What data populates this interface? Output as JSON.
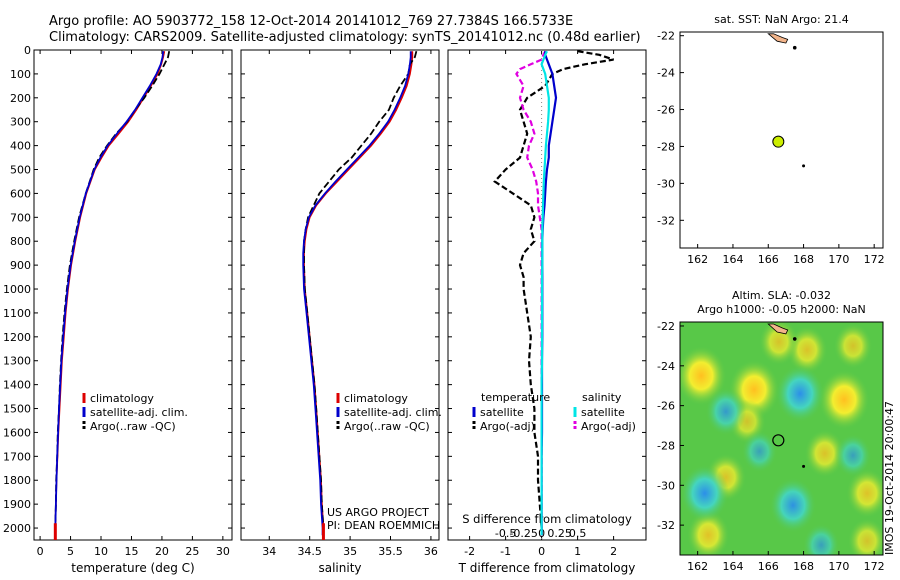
{
  "header": {
    "line1": "Argo profile: AO 5903772_158 12-Oct-2014 20141012_769 27.7384S 166.5733E",
    "line2": "Climatology: CARS2009. Satellite-adjusted climatology: synTS_20141012.nc (0.48d earlier)"
  },
  "colors": {
    "climatology": "#dd0000",
    "satellite": "#0000cc",
    "argo": "#000000",
    "sal_satellite": "#00e5e5",
    "sal_argo": "#e000e0",
    "float_marker": "#ccee00",
    "land": "#f2b48a"
  },
  "credit": {
    "line1": "US ARGO PROJECT",
    "line2": "PI: DEAN ROEMMICH"
  },
  "timestamp": "IMOS 19-Oct-2014 20:00:47",
  "chart_data": [
    {
      "type": "line",
      "id": "temperature",
      "xlabel": "temperature (deg C)",
      "xlim": [
        -1,
        31.5
      ],
      "xticks": [
        0,
        5,
        10,
        15,
        20,
        25,
        30
      ],
      "xtick_labels": [
        "0",
        "5",
        "10",
        "15",
        "20",
        "25",
        "30"
      ],
      "ylim": [
        0,
        2050
      ],
      "yticks": [
        0,
        100,
        200,
        300,
        400,
        500,
        600,
        700,
        800,
        900,
        1000,
        1100,
        1200,
        1300,
        1400,
        1500,
        1600,
        1700,
        1800,
        1900,
        2000
      ],
      "ytick_labels": [
        "0",
        "100",
        "200",
        "300",
        "400",
        "500",
        "600",
        "700",
        "800",
        "900",
        "1000",
        "1100",
        "1200",
        "1300",
        "1400",
        "1500",
        "1600",
        "1700",
        "1800",
        "1900",
        "2000"
      ],
      "legend": [
        "climatology",
        "satellite-adj. clim.",
        "Argo(..raw -QC)"
      ],
      "depth": [
        5,
        30,
        60,
        100,
        150,
        200,
        250,
        300,
        350,
        400,
        450,
        500,
        600,
        700,
        800,
        900,
        1000,
        1100,
        1200,
        1300,
        1400,
        1500,
        1600,
        1700,
        1800,
        1900,
        2000,
        2030
      ],
      "series": [
        {
          "name": "climatology",
          "values": [
            20.4,
            20.2,
            19.9,
            19.3,
            18.2,
            17.0,
            15.8,
            14.5,
            12.9,
            11.3,
            10.1,
            9.0,
            7.6,
            6.6,
            5.8,
            5.1,
            4.6,
            4.2,
            3.9,
            3.6,
            3.4,
            3.2,
            3.0,
            2.85,
            2.7,
            2.6,
            2.5,
            2.5
          ]
        },
        {
          "name": "satellite-adj. clim.",
          "values": [
            20.2,
            20.1,
            19.8,
            19.1,
            18.0,
            16.8,
            15.6,
            14.2,
            12.6,
            11.1,
            9.9,
            8.9,
            7.5,
            6.5,
            5.7,
            5.0,
            4.5,
            4.1,
            3.8,
            3.5,
            3.3,
            3.1,
            2.95,
            2.8,
            2.7,
            2.6,
            2.5,
            2.5
          ]
        },
        {
          "name": "Argo(..raw -QC)",
          "values": [
            21.2,
            21.0,
            20.4,
            19.6,
            18.4,
            17.1,
            15.6,
            14.3,
            12.5,
            11.0,
            9.7,
            8.8,
            7.5,
            6.4,
            5.6,
            4.9,
            4.4,
            4.0,
            3.7,
            3.45,
            3.25,
            3.1,
            2.9,
            2.8,
            2.65,
            2.6,
            2.5,
            2.5
          ]
        }
      ]
    },
    {
      "type": "line",
      "id": "salinity",
      "xlabel": "salinity",
      "xlim": [
        33.65,
        36.1
      ],
      "xticks": [
        34,
        34.5,
        35,
        35.5,
        36
      ],
      "xtick_labels": [
        "34",
        "34.5",
        "35",
        "35.5",
        "36"
      ],
      "ylim": [
        0,
        2050
      ],
      "legend": [
        "climatology",
        "satellite-adj. clim.",
        "Argo(..raw -QC)"
      ],
      "depth": [
        5,
        30,
        60,
        100,
        150,
        200,
        250,
        300,
        350,
        400,
        450,
        500,
        550,
        600,
        650,
        700,
        750,
        800,
        850,
        900,
        1000,
        1100,
        1200,
        1300,
        1400,
        1500,
        1600,
        1700,
        1800,
        1900,
        2000,
        2030
      ],
      "series": [
        {
          "name": "climatology",
          "values": [
            35.77,
            35.77,
            35.76,
            35.74,
            35.7,
            35.64,
            35.57,
            35.49,
            35.38,
            35.26,
            35.12,
            34.98,
            34.84,
            34.7,
            34.58,
            34.5,
            34.46,
            34.44,
            34.43,
            34.43,
            34.44,
            34.47,
            34.5,
            34.53,
            34.56,
            34.58,
            34.6,
            34.62,
            34.64,
            34.65,
            34.67,
            34.67
          ]
        },
        {
          "name": "satellite-adj. clim.",
          "values": [
            35.75,
            35.75,
            35.74,
            35.72,
            35.68,
            35.62,
            35.55,
            35.47,
            35.36,
            35.24,
            35.1,
            34.96,
            34.82,
            34.69,
            34.57,
            34.49,
            34.45,
            34.43,
            34.42,
            34.42,
            34.43,
            34.46,
            34.49,
            34.52,
            34.55,
            34.57,
            34.59,
            34.61,
            34.63,
            34.64,
            34.66,
            34.66
          ]
        },
        {
          "name": "Argo(..raw -QC)",
          "values": [
            35.82,
            35.8,
            35.74,
            35.72,
            35.62,
            35.54,
            35.48,
            35.36,
            35.26,
            35.14,
            35.02,
            34.86,
            34.74,
            34.62,
            34.55,
            34.48,
            34.45,
            34.43,
            34.43,
            34.43,
            34.44,
            34.47,
            34.5,
            34.53,
            34.56,
            34.58,
            34.6,
            34.62,
            34.64,
            34.65,
            34.67,
            34.67
          ]
        }
      ]
    },
    {
      "type": "line",
      "id": "difference",
      "xlabel": "T difference from climatology",
      "xlabel_top": "S difference from climatology",
      "xlim": [
        -2.6,
        2.9
      ],
      "xticks": [
        -2,
        -1,
        0,
        1,
        2
      ],
      "xtick_labels": [
        "-2",
        "-1",
        "0",
        "1",
        "2"
      ],
      "sticks": [
        -1,
        -0.5,
        0,
        0.5,
        1
      ],
      "stick_labels": [
        "-0.5",
        "-0.25",
        "0",
        "0.25",
        "0.5"
      ],
      "ylim": [
        0,
        2050
      ],
      "legend_temperature_title": "temperature",
      "legend_salinity_title": "salinity",
      "legend": [
        "satellite",
        "Argo(-adj)",
        "satellite",
        "Argo(-adj)"
      ],
      "depth": [
        5,
        20,
        40,
        60,
        80,
        100,
        150,
        200,
        250,
        300,
        350,
        400,
        450,
        500,
        550,
        600,
        650,
        700,
        750,
        800,
        850,
        900,
        950,
        1000,
        1100,
        1200,
        1300,
        1400,
        1500,
        1600,
        1700,
        1800,
        1900,
        2000,
        2030
      ],
      "series": [
        {
          "name": "T satellite",
          "values": [
            0.1,
            0.1,
            0.15,
            0.2,
            0.25,
            0.3,
            0.35,
            0.4,
            0.35,
            0.3,
            0.25,
            0.2,
            0.2,
            0.15,
            0.12,
            0.1,
            0.08,
            0.05,
            0.03,
            0.02,
            0.02,
            0.02,
            0.02,
            0.02,
            0.02,
            0.02,
            0.01,
            0.01,
            0.01,
            0.01,
            0.0,
            0.0,
            0.0,
            0.0,
            0.0
          ]
        },
        {
          "name": "T Argo(-adj)",
          "values": [
            1.0,
            1.6,
            2.0,
            1.2,
            0.6,
            0.3,
            0.1,
            -0.4,
            -0.6,
            -0.5,
            -0.4,
            -0.5,
            -0.6,
            -1.0,
            -1.3,
            -0.8,
            -0.3,
            -0.2,
            -0.3,
            -0.2,
            -0.5,
            -0.6,
            -0.5,
            -0.5,
            -0.4,
            -0.3,
            -0.35,
            -0.3,
            -0.2,
            -0.2,
            -0.1,
            -0.1,
            -0.05,
            0.0,
            0.0
          ]
        },
        {
          "name": "S satellite",
          "values": [
            0.15,
            0.1,
            0.05,
            0.0,
            0.05,
            0.1,
            0.15,
            0.2,
            0.2,
            0.18,
            0.15,
            0.12,
            0.1,
            0.08,
            0.06,
            0.05,
            0.04,
            0.03,
            0.02,
            0.02,
            0.02,
            0.02,
            0.01,
            0.01,
            0.01,
            0.01,
            0.01,
            0.0,
            0.0,
            0.0,
            0.0,
            0.0,
            0.0,
            0.0,
            0.0
          ]
        },
        {
          "name": "S Argo(-adj)",
          "values": [
            0.1,
            0.05,
            0.0,
            -0.3,
            -0.6,
            -0.7,
            -0.5,
            -0.6,
            -0.5,
            -0.3,
            -0.2,
            -0.35,
            -0.4,
            -0.25,
            -0.15,
            -0.1,
            -0.1,
            -0.05,
            0.0,
            0.0,
            0.0,
            0.0,
            0.0,
            0.0,
            0.0,
            0.0,
            0.0,
            0.0,
            0.0,
            0.0,
            0.0,
            0.0,
            0.0,
            0.0,
            0.0
          ]
        }
      ]
    },
    {
      "type": "scatter",
      "id": "sst_map",
      "title": "sat. SST: NaN Argo: 21.4",
      "xlim": [
        161,
        172.5
      ],
      "ylim": [
        -33.5,
        -21.8
      ],
      "xticks": [
        162,
        164,
        166,
        168,
        170,
        172
      ],
      "xtick_labels": [
        "162",
        "164",
        "166",
        "168",
        "170",
        "172"
      ],
      "yticks": [
        -22,
        -24,
        -26,
        -28,
        -30,
        -32
      ],
      "ytick_labels": [
        "-22",
        "-24",
        "-26",
        "-28",
        "-30",
        "-32"
      ],
      "float_position": [
        166.57,
        -27.74
      ]
    },
    {
      "type": "heatmap",
      "id": "sla_map",
      "title": "Altim. SLA: -0.032",
      "subtitle": "Argo h1000: -0.05 h2000: NaN",
      "xlim": [
        161,
        172.5
      ],
      "ylim": [
        -33.5,
        -21.8
      ],
      "xticks": [
        162,
        164,
        166,
        168,
        170,
        172
      ],
      "xtick_labels": [
        "162",
        "164",
        "166",
        "168",
        "170",
        "172"
      ],
      "yticks": [
        -22,
        -24,
        -26,
        -28,
        -30,
        -32
      ],
      "ytick_labels": [
        "-22",
        "-24",
        "-26",
        "-28",
        "-30",
        "-32"
      ],
      "float_position": [
        166.57,
        -27.74
      ],
      "anomalies": [
        {
          "lon": 162.2,
          "lat": -24.5,
          "v": 1.0
        },
        {
          "lon": 165.2,
          "lat": -25.2,
          "v": 1.0
        },
        {
          "lon": 170.3,
          "lat": -25.7,
          "v": 1.0
        },
        {
          "lon": 168.2,
          "lat": -23.2,
          "v": 0.5
        },
        {
          "lon": 170.8,
          "lat": -23.0,
          "v": 0.4
        },
        {
          "lon": 166.6,
          "lat": -22.8,
          "v": 0.45
        },
        {
          "lon": 163.6,
          "lat": -29.6,
          "v": 0.5
        },
        {
          "lon": 169.2,
          "lat": -28.4,
          "v": 0.5
        },
        {
          "lon": 171.6,
          "lat": -30.4,
          "v": 0.55
        },
        {
          "lon": 171.6,
          "lat": -32.8,
          "v": 0.4
        },
        {
          "lon": 162.6,
          "lat": -32.5,
          "v": 0.6
        },
        {
          "lon": 164.8,
          "lat": -26.8,
          "v": 0.35
        },
        {
          "lon": 167.8,
          "lat": -25.4,
          "v": -0.9
        },
        {
          "lon": 163.6,
          "lat": -26.3,
          "v": -0.5
        },
        {
          "lon": 162.4,
          "lat": -30.4,
          "v": -0.9
        },
        {
          "lon": 167.4,
          "lat": -31.0,
          "v": -0.8
        },
        {
          "lon": 165.5,
          "lat": -28.3,
          "v": -0.25
        },
        {
          "lon": 170.8,
          "lat": -28.5,
          "v": -0.3
        },
        {
          "lon": 169.0,
          "lat": -33.0,
          "v": -0.3
        }
      ]
    }
  ]
}
